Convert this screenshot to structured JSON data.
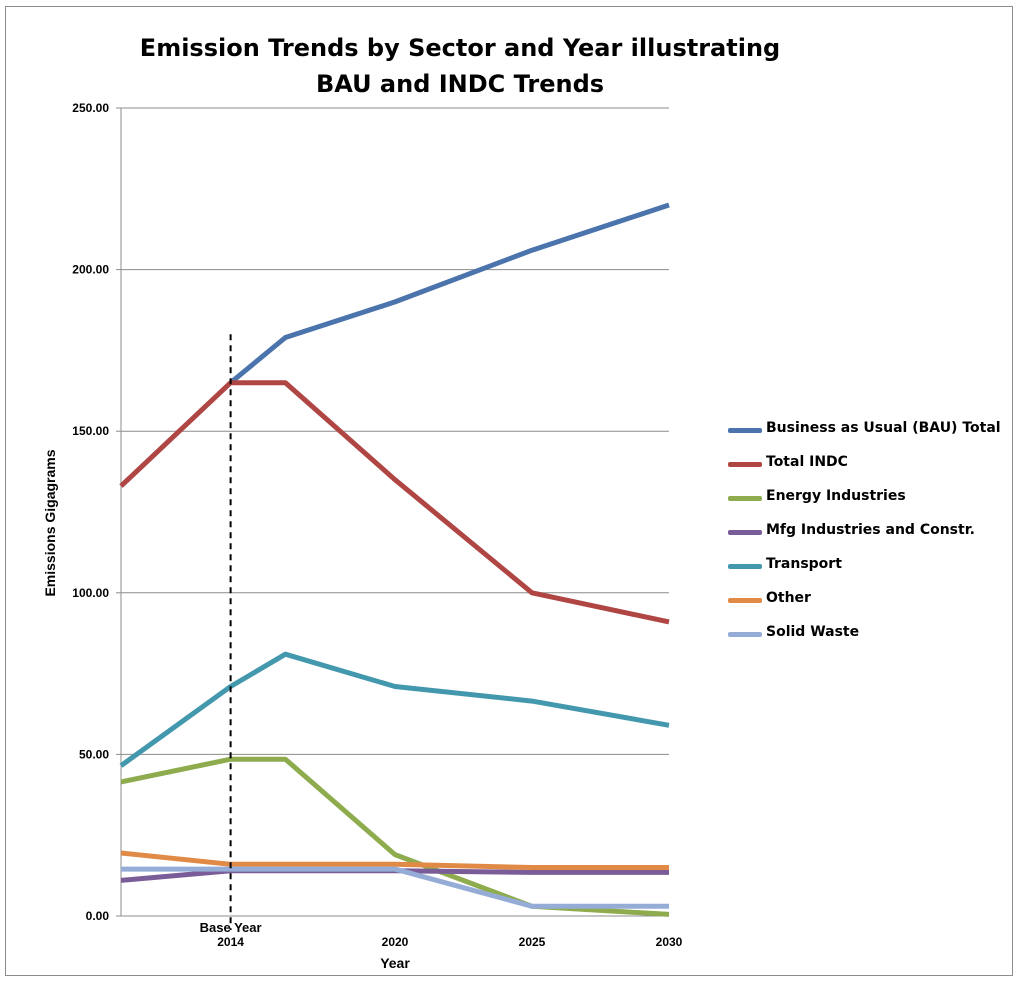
{
  "chart_data": {
    "type": "line",
    "title_line1": "Emission Trends by Sector and Year illustrating",
    "title_line2": "BAU and INDC Trends",
    "title": "Emission Trends by Sector and Year illustrating BAU and INDC Trends",
    "xlabel": "Year",
    "ylabel": "Emissions  Gigagrams",
    "x": [
      2010,
      2014,
      2016,
      2020,
      2025,
      2030
    ],
    "x_tick_labels": [
      {
        "x": 2014,
        "label": "2014"
      },
      {
        "x": 2020,
        "label": "2020"
      },
      {
        "x": 2025,
        "label": "2025"
      },
      {
        "x": 2030,
        "label": "2030"
      }
    ],
    "xlim": [
      2010,
      2030
    ],
    "ylim": [
      0,
      250
    ],
    "y_ticks": [
      0,
      50,
      100,
      150,
      200,
      250
    ],
    "y_tick_labels": [
      "0.00",
      "50.00",
      "100.00",
      "150.00",
      "200.00",
      "250.00"
    ],
    "grid": true,
    "legend_position": "right",
    "annotations": [
      {
        "type": "vertical-dashed-line",
        "x": 2014,
        "y_top": 180,
        "label": "Base Year"
      }
    ],
    "series": [
      {
        "name": "Business as Usual (BAU) Total",
        "color": "#4a74ab",
        "points": [
          [
            2014,
            165
          ],
          [
            2016,
            179
          ],
          [
            2020,
            190
          ],
          [
            2025,
            206
          ],
          [
            2030,
            220
          ]
        ]
      },
      {
        "name": "Total INDC",
        "color": "#b04644",
        "points": [
          [
            2010,
            133
          ],
          [
            2014,
            165
          ],
          [
            2016,
            165
          ],
          [
            2020,
            135
          ],
          [
            2025,
            100
          ],
          [
            2030,
            91
          ]
        ]
      },
      {
        "name": "Energy Industries",
        "color": "#8eac4e",
        "points": [
          [
            2010,
            41.5
          ],
          [
            2014,
            48.5
          ],
          [
            2016,
            48.5
          ],
          [
            2020,
            19
          ],
          [
            2025,
            3
          ],
          [
            2030,
            0.5
          ]
        ]
      },
      {
        "name": "Mfg Industries and Constr.",
        "color": "#7a5d98",
        "points": [
          [
            2010,
            11
          ],
          [
            2014,
            14
          ],
          [
            2016,
            14
          ],
          [
            2020,
            14
          ],
          [
            2025,
            13.5
          ],
          [
            2030,
            13.5
          ]
        ]
      },
      {
        "name": "Transport",
        "color": "#4398ad",
        "points": [
          [
            2010,
            46.5
          ],
          [
            2014,
            71
          ],
          [
            2016,
            81
          ],
          [
            2020,
            71
          ],
          [
            2025,
            66.5
          ],
          [
            2030,
            59
          ]
        ]
      },
      {
        "name": "Other",
        "color": "#e08a45",
        "points": [
          [
            2010,
            19.5
          ],
          [
            2014,
            16
          ],
          [
            2016,
            16
          ],
          [
            2020,
            16
          ],
          [
            2025,
            15
          ],
          [
            2030,
            15
          ]
        ]
      },
      {
        "name": "Solid Waste",
        "color": "#95add6",
        "points": [
          [
            2010,
            14.5
          ],
          [
            2014,
            14.5
          ],
          [
            2016,
            14.5
          ],
          [
            2020,
            14.5
          ],
          [
            2025,
            3
          ],
          [
            2030,
            3
          ]
        ]
      }
    ]
  }
}
